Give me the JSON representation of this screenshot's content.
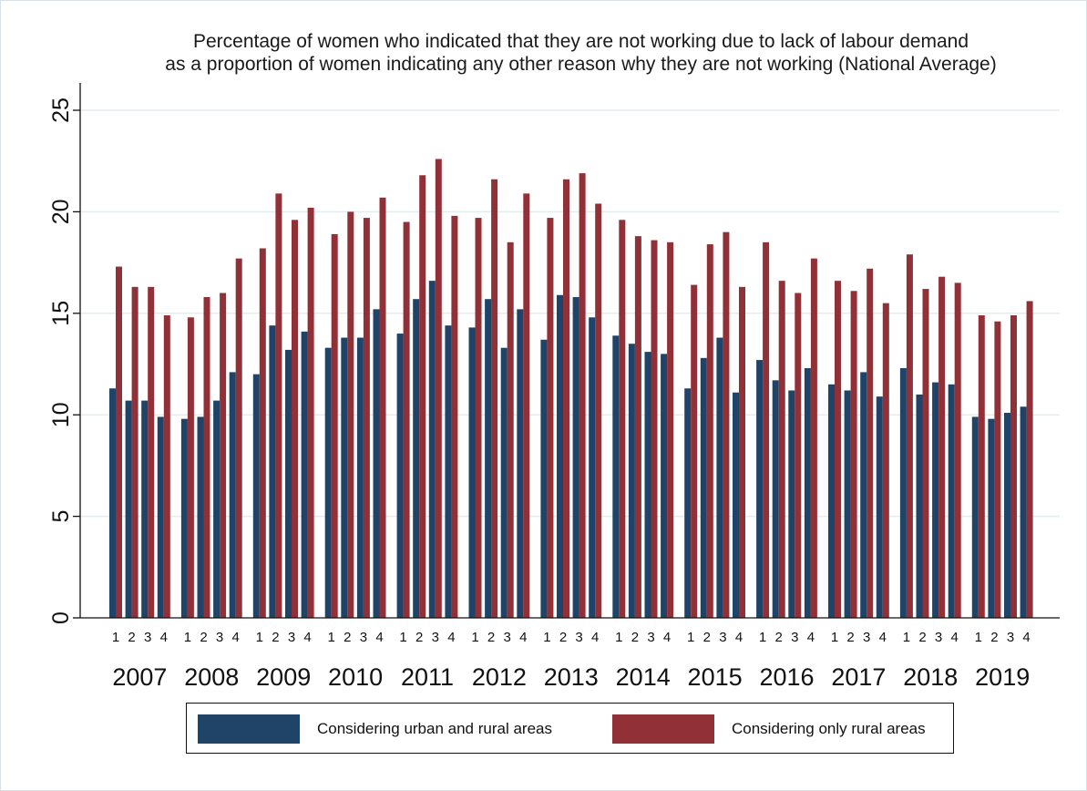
{
  "chart_data": {
    "type": "bar",
    "title_lines": [
      "Percentage of women who indicated that they are not working due to lack of labour demand",
      "as a proportion of women indicating any other reason why they are not working (National Average)"
    ],
    "xlabel": "",
    "ylabel": "",
    "ylim": [
      0,
      25
    ],
    "yticks": [
      0,
      5,
      10,
      15,
      20,
      25
    ],
    "grid": true,
    "legend_position": "bottom",
    "years": [
      "2007",
      "2008",
      "2009",
      "2010",
      "2011",
      "2012",
      "2013",
      "2014",
      "2015",
      "2016",
      "2017",
      "2018",
      "2019"
    ],
    "quarters": [
      "1",
      "2",
      "3",
      "4"
    ],
    "series": [
      {
        "name": "Considering urban and rural areas",
        "color": "#1f4468",
        "values": [
          11.3,
          10.7,
          10.7,
          9.9,
          9.8,
          9.9,
          10.7,
          12.1,
          12.0,
          14.4,
          13.2,
          14.1,
          13.3,
          13.8,
          13.8,
          15.2,
          14.0,
          15.7,
          16.6,
          14.4,
          14.3,
          15.7,
          13.3,
          15.2,
          13.7,
          15.9,
          15.8,
          14.8,
          13.9,
          13.5,
          13.1,
          13.0,
          11.3,
          12.8,
          13.8,
          11.1,
          12.7,
          11.7,
          11.2,
          12.3,
          11.5,
          11.2,
          12.1,
          10.9,
          12.3,
          11.0,
          11.6,
          11.5,
          9.9,
          9.8,
          10.1,
          10.4
        ]
      },
      {
        "name": "Considering only rural areas",
        "color": "#923038",
        "values": [
          17.3,
          16.3,
          16.3,
          14.9,
          14.8,
          15.8,
          16.0,
          17.7,
          18.2,
          20.9,
          19.6,
          20.2,
          18.9,
          20.0,
          19.7,
          20.7,
          19.5,
          21.8,
          22.6,
          19.8,
          19.7,
          21.6,
          18.5,
          20.9,
          19.7,
          21.6,
          21.9,
          20.4,
          19.6,
          18.8,
          18.6,
          18.5,
          16.4,
          18.4,
          19.0,
          16.3,
          18.5,
          16.6,
          16.0,
          17.7,
          16.6,
          16.1,
          17.2,
          15.5,
          17.9,
          16.2,
          16.8,
          16.5,
          14.9,
          14.6,
          14.9,
          15.6
        ]
      }
    ]
  },
  "legend": {
    "items": [
      {
        "label": "Considering urban and rural areas",
        "color": "#1f4468"
      },
      {
        "label": "Considering only rural areas",
        "color": "#923038"
      }
    ]
  }
}
